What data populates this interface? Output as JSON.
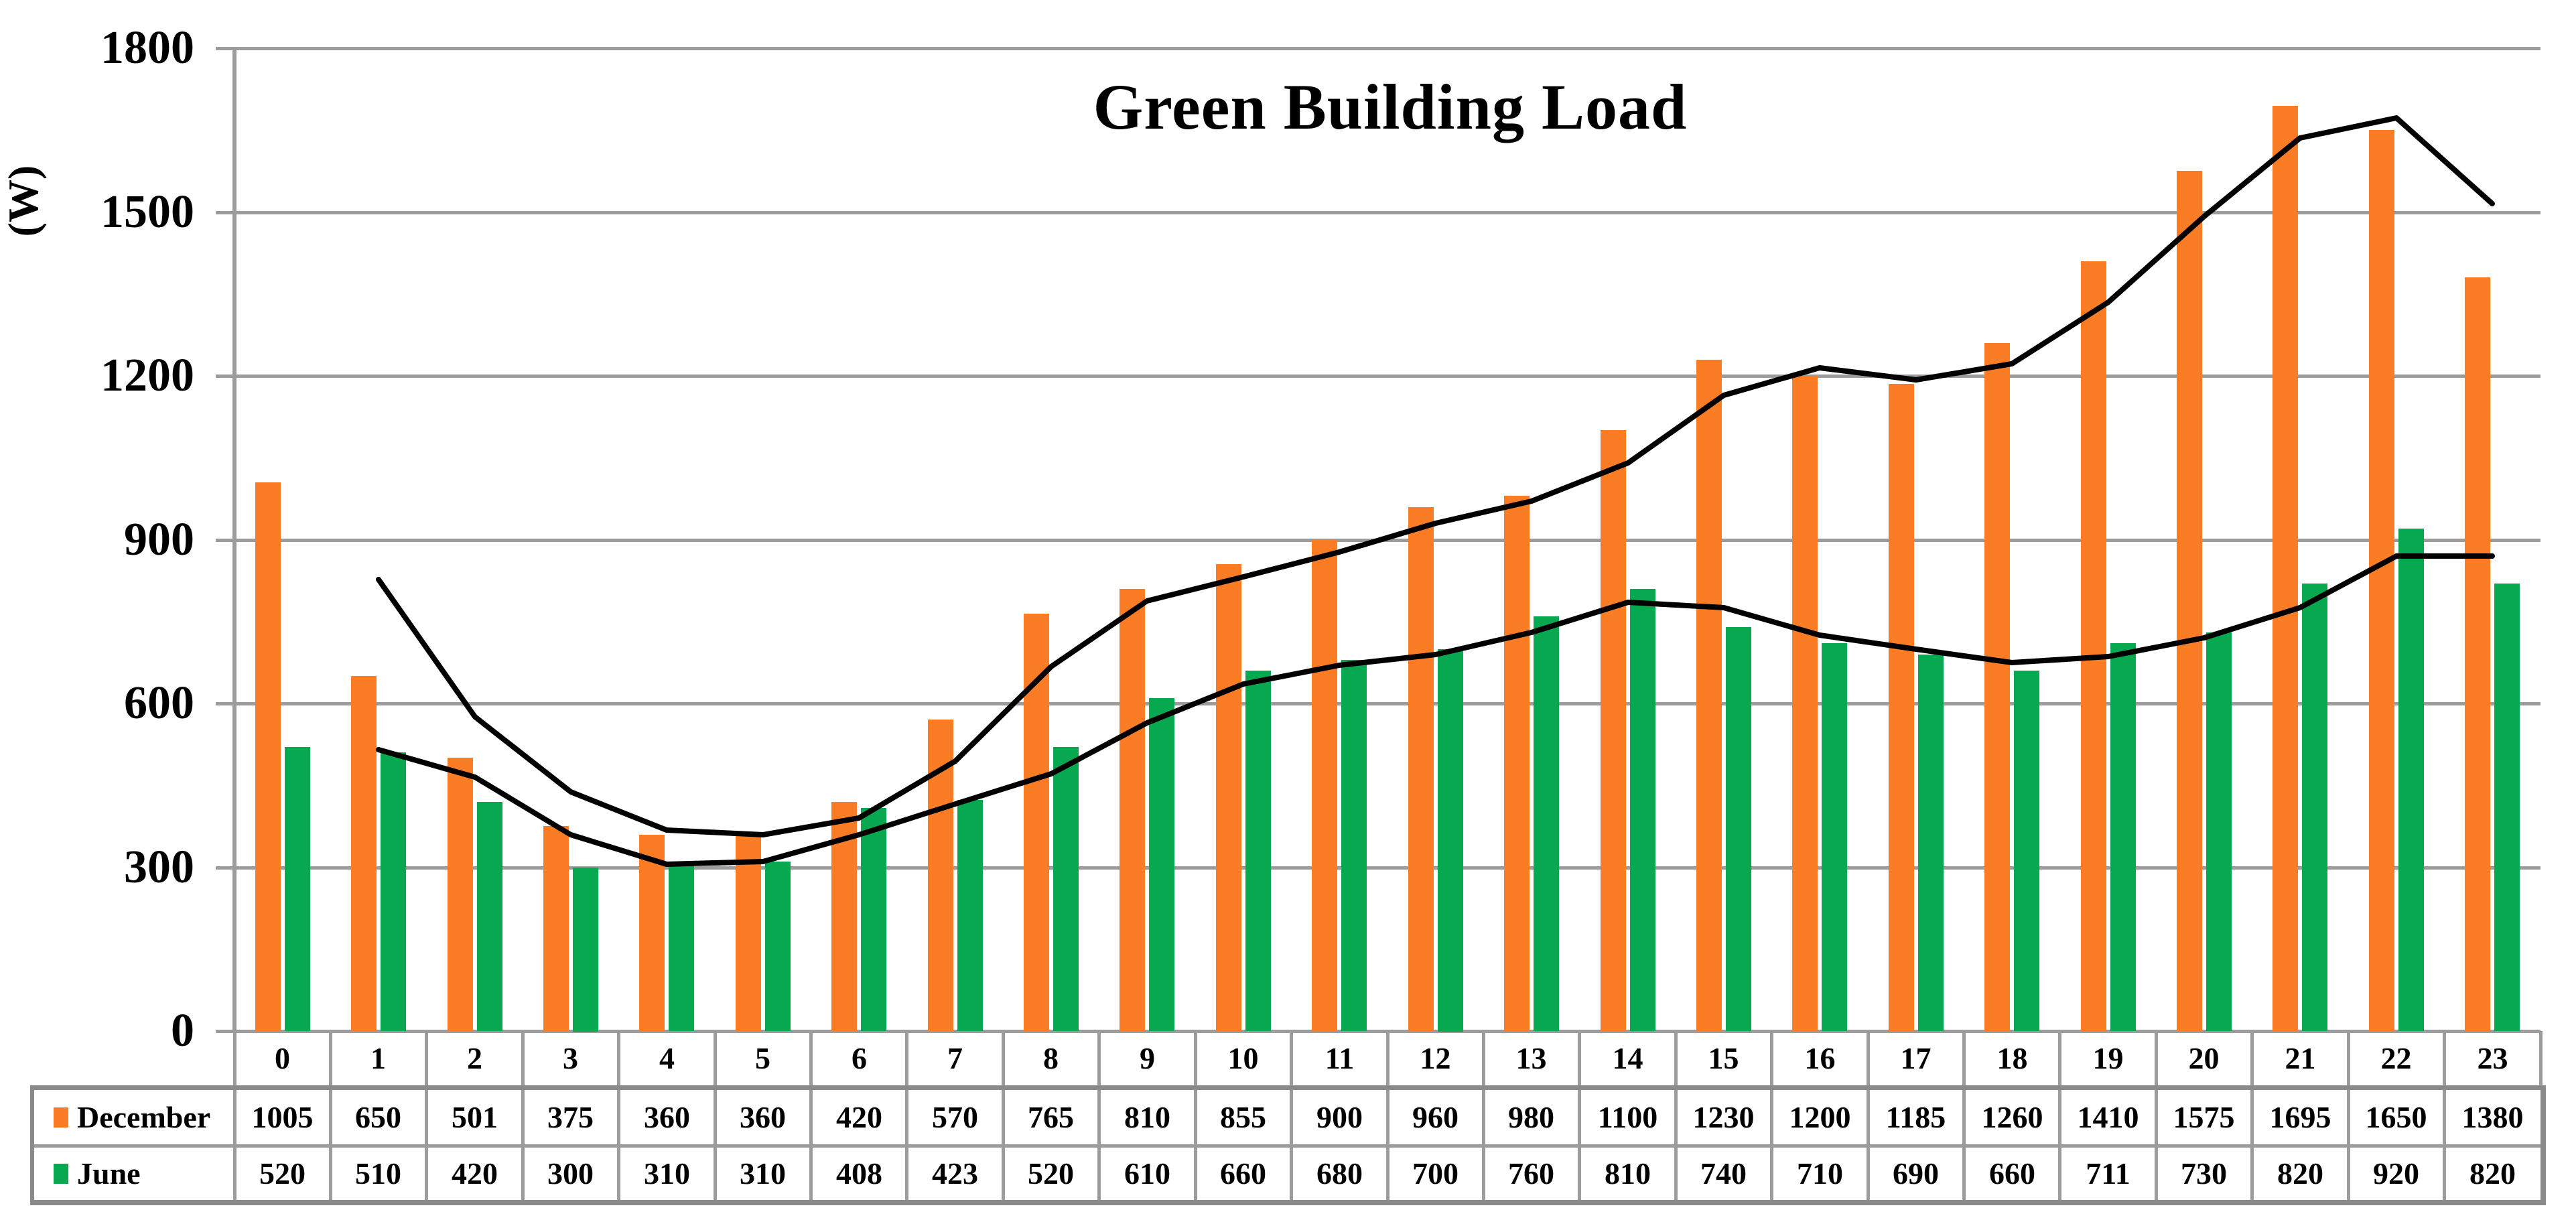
{
  "chart_data": {
    "type": "bar",
    "title": "Green Building Load",
    "y_axis_title": "(W)",
    "categories": [
      "0",
      "1",
      "2",
      "3",
      "4",
      "5",
      "6",
      "7",
      "8",
      "9",
      "10",
      "11",
      "12",
      "13",
      "14",
      "15",
      "16",
      "17",
      "18",
      "19",
      "20",
      "21",
      "22",
      "23"
    ],
    "series": [
      {
        "name": "December",
        "color": "#FA7D26",
        "values": [
          1005,
          650,
          501,
          375,
          360,
          360,
          420,
          570,
          765,
          810,
          855,
          900,
          960,
          980,
          1100,
          1230,
          1200,
          1185,
          1260,
          1410,
          1575,
          1695,
          1650,
          1380
        ]
      },
      {
        "name": "June",
        "color": "#07A84F",
        "values": [
          520,
          510,
          420,
          300,
          310,
          310,
          408,
          423,
          520,
          610,
          660,
          680,
          700,
          760,
          810,
          740,
          710,
          690,
          660,
          711,
          730,
          820,
          920,
          820
        ]
      }
    ],
    "trendlines": [
      {
        "series": "December",
        "type": "moving_average",
        "period": 2,
        "color": "#000000"
      },
      {
        "series": "June",
        "type": "moving_average",
        "period": 2,
        "color": "#000000"
      }
    ],
    "ylim": [
      0,
      1800
    ],
    "yticks": [
      0,
      300,
      600,
      900,
      1200,
      1500,
      1800
    ],
    "grid": "horizontal",
    "legend_position": "data-table-left"
  },
  "colors": {
    "gridline": "#9C9C9C",
    "axis_line": "#9C9C9C",
    "table_border": "#9C9C9C",
    "table_border_thick": "#8A8A8A",
    "text": "#000000",
    "background": "#FFFFFF"
  }
}
